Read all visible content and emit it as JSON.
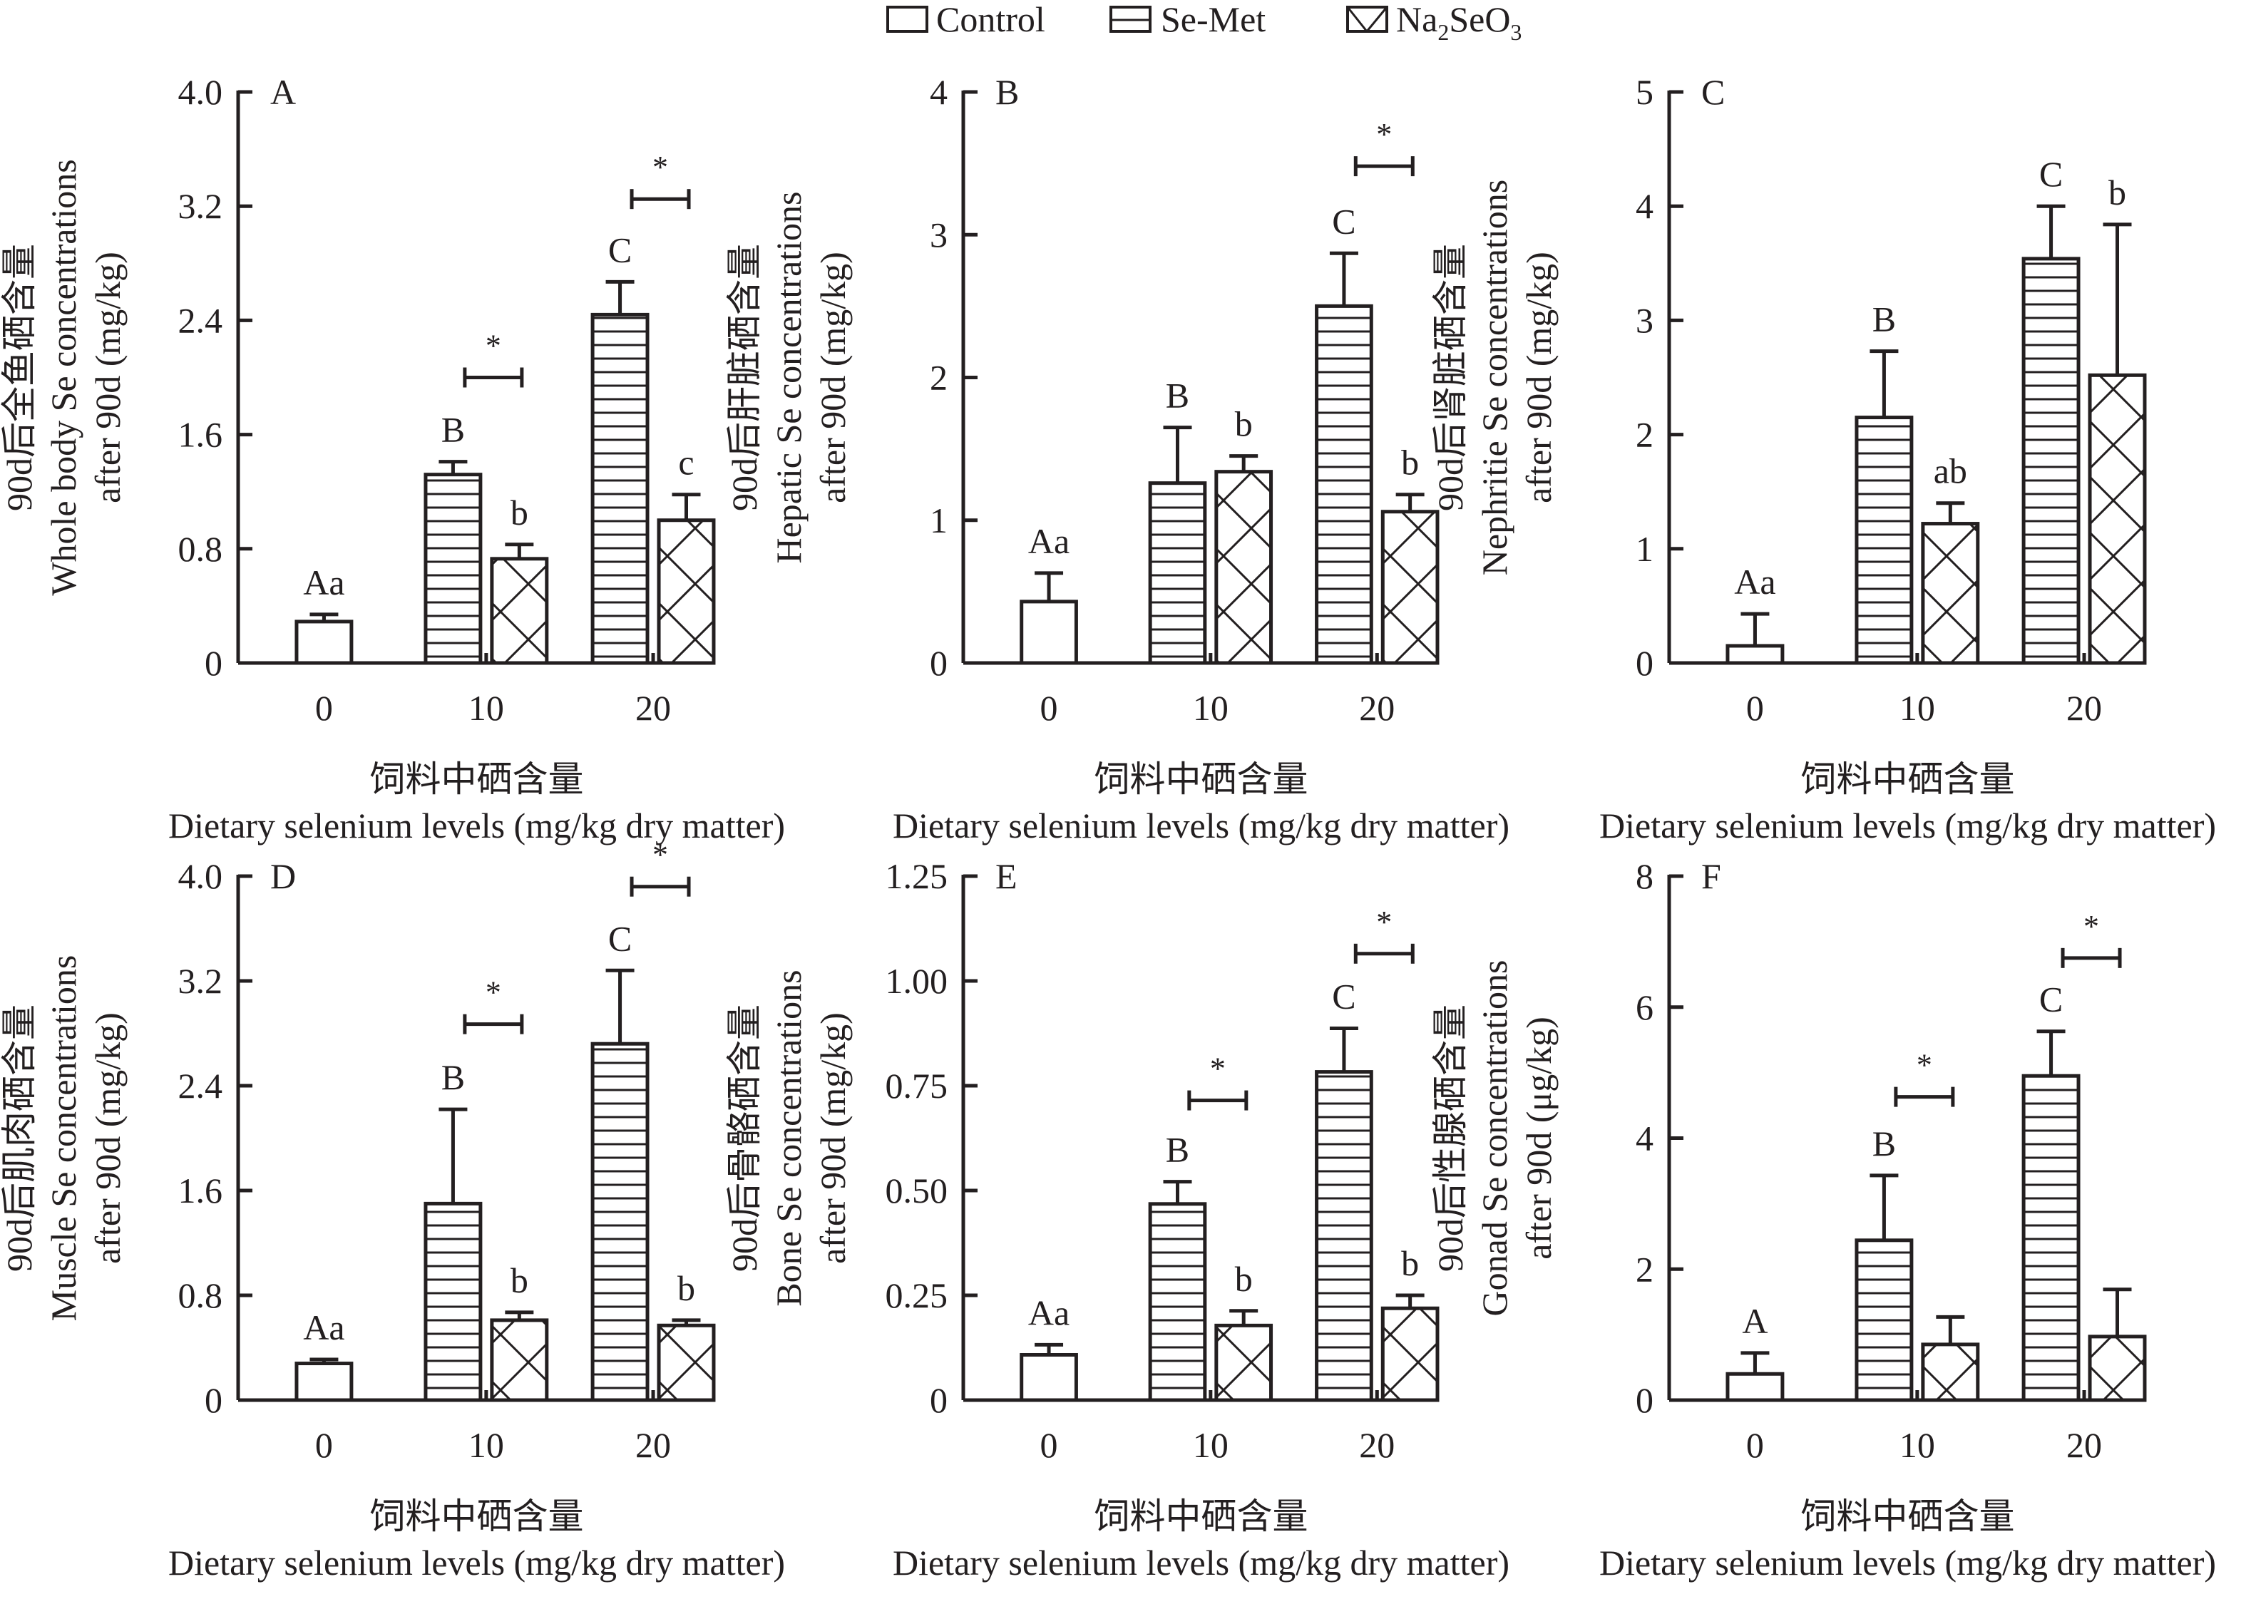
{
  "chart_data": {
    "type": "bar",
    "layout": "2x3 grid of grouped bar charts with error bars",
    "legend": {
      "placement": "top-center",
      "entries": [
        {
          "name": "Control",
          "pattern": "empty"
        },
        {
          "name": "Se-Met",
          "pattern": "horizontal-lines"
        },
        {
          "name": "Na2SeO3",
          "display": [
            "Na",
            "2",
            "SeO",
            "3"
          ],
          "pattern": "crosshatch"
        }
      ]
    },
    "xlabel_cn": "饲料中硒含量",
    "xlabel": "Dietary selenium levels (mg/kg dry matter)",
    "categories": [
      "0",
      "10",
      "20"
    ],
    "panels": [
      {
        "letter": "A",
        "ylabel_cn": "90d后全鱼硒含量",
        "ylabel_line1": "Whole body Se concentrations",
        "ylabel_line2": "after 90d (mg/kg)",
        "ylim": [
          0,
          4.0
        ],
        "yticks": [
          "0",
          "0.8",
          "1.6",
          "2.4",
          "3.2",
          "4.0"
        ],
        "series": [
          {
            "name": "Control",
            "values": [
              0.29,
              null,
              null
            ],
            "err_upper": [
              0.34,
              null,
              null
            ],
            "labels": [
              "Aa",
              "",
              ""
            ]
          },
          {
            "name": "Se-Met",
            "values": [
              null,
              1.32,
              2.44
            ],
            "err_upper": [
              null,
              1.41,
              2.67
            ],
            "labels": [
              "",
              "B",
              "C"
            ]
          },
          {
            "name": "Na2SeO3",
            "values": [
              null,
              0.73,
              1.0
            ],
            "err_upper": [
              null,
              0.83,
              1.18
            ],
            "labels": [
              "",
              "b",
              "c"
            ]
          }
        ],
        "significance": [
          {
            "category": "10",
            "y": 2.0,
            "mark": "*"
          },
          {
            "category": "20",
            "y": 3.25,
            "mark": "*"
          }
        ]
      },
      {
        "letter": "B",
        "ylabel_cn": "90d后肝脏硒含量",
        "ylabel_line1": "Hepatic Se concentrations",
        "ylabel_line2": "after 90d (mg/kg)",
        "ylim": [
          0,
          4
        ],
        "yticks": [
          "0",
          "1",
          "2",
          "3",
          "4"
        ],
        "series": [
          {
            "name": "Control",
            "values": [
              0.43,
              null,
              null
            ],
            "err_upper": [
              0.63,
              null,
              null
            ],
            "labels": [
              "Aa",
              "",
              ""
            ]
          },
          {
            "name": "Se-Met",
            "values": [
              null,
              1.26,
              2.5
            ],
            "err_upper": [
              null,
              1.65,
              2.87
            ],
            "labels": [
              "",
              "B",
              "C"
            ]
          },
          {
            "name": "Na2SeO3",
            "values": [
              null,
              1.34,
              1.06
            ],
            "err_upper": [
              null,
              1.45,
              1.18
            ],
            "labels": [
              "",
              "b",
              "b"
            ]
          }
        ],
        "significance": [
          {
            "category": "20",
            "y": 3.48,
            "mark": "*"
          }
        ]
      },
      {
        "letter": "C",
        "ylabel_cn": "90d后肾脏硒含量",
        "ylabel_line1": "Nephritie Se concentrations",
        "ylabel_line2": "after 90d (mg/kg)",
        "ylim": [
          0,
          5
        ],
        "yticks": [
          "0",
          "1",
          "2",
          "3",
          "4",
          "5"
        ],
        "series": [
          {
            "name": "Control",
            "values": [
              0.15,
              null,
              null
            ],
            "err_upper": [
              0.43,
              null,
              null
            ],
            "labels": [
              "Aa",
              "",
              ""
            ]
          },
          {
            "name": "Se-Met",
            "values": [
              null,
              2.15,
              3.54
            ],
            "err_upper": [
              null,
              2.73,
              4.0
            ],
            "labels": [
              "",
              "B",
              "C"
            ]
          },
          {
            "name": "Na2SeO3",
            "values": [
              null,
              1.22,
              2.52
            ],
            "err_upper": [
              null,
              1.4,
              3.84
            ],
            "labels": [
              "",
              "ab",
              "b"
            ]
          }
        ],
        "significance": []
      },
      {
        "letter": "D",
        "ylabel_cn": "90d后肌肉硒含量",
        "ylabel_line1": "Muscle Se concentrations",
        "ylabel_line2": "after 90d (mg/kg)",
        "ylim": [
          0,
          4.0
        ],
        "yticks": [
          "0",
          "0.8",
          "1.6",
          "2.4",
          "3.2",
          "4.0"
        ],
        "series": [
          {
            "name": "Control",
            "values": [
              0.28,
              null,
              null
            ],
            "err_upper": [
              0.31,
              null,
              null
            ],
            "labels": [
              "Aa",
              "",
              ""
            ]
          },
          {
            "name": "Se-Met",
            "values": [
              null,
              1.5,
              2.72
            ],
            "err_upper": [
              null,
              2.22,
              3.28
            ],
            "labels": [
              "",
              "B",
              "C"
            ]
          },
          {
            "name": "Na2SeO3",
            "values": [
              null,
              0.61,
              0.57
            ],
            "err_upper": [
              null,
              0.67,
              0.61
            ],
            "labels": [
              "",
              "b",
              "b"
            ]
          }
        ],
        "significance": [
          {
            "category": "10",
            "y": 2.87,
            "mark": "*"
          },
          {
            "category": "20",
            "y": 3.92,
            "mark": "*"
          }
        ]
      },
      {
        "letter": "E",
        "ylabel_cn": "90d后骨骼硒含量",
        "ylabel_line1": "Bone Se concentrations",
        "ylabel_line2": "after 90d (mg/kg)",
        "ylim": [
          0,
          1.25
        ],
        "yticks": [
          "0",
          "0.25",
          "0.50",
          "0.75",
          "1.00",
          "1.25"
        ],
        "series": [
          {
            "name": "Control",
            "values": [
              0.108,
              null,
              null
            ],
            "err_upper": [
              0.132,
              null,
              null
            ],
            "labels": [
              "Aa",
              "",
              ""
            ]
          },
          {
            "name": "Se-Met",
            "values": [
              null,
              0.468,
              0.783
            ],
            "err_upper": [
              null,
              0.521,
              0.887
            ],
            "labels": [
              "",
              "B",
              "C"
            ]
          },
          {
            "name": "Na2SeO3",
            "values": [
              null,
              0.178,
              0.219
            ],
            "err_upper": [
              null,
              0.213,
              0.25
            ],
            "labels": [
              "",
              "b",
              "b"
            ]
          }
        ],
        "significance": [
          {
            "category": "10",
            "y": 0.715,
            "mark": "*"
          },
          {
            "category": "20",
            "y": 1.065,
            "mark": "*"
          }
        ]
      },
      {
        "letter": "F",
        "ylabel_cn": "90d后性腺硒含量",
        "ylabel_line1": "Gonad Se concentrations",
        "ylabel_line2": "after 90d (μg/kg)",
        "ylim": [
          0,
          8
        ],
        "yticks": [
          "0",
          "2",
          "4",
          "6",
          "8"
        ],
        "series": [
          {
            "name": "Control",
            "values": [
              0.4,
              null,
              null
            ],
            "err_upper": [
              0.72,
              null,
              null
            ],
            "labels": [
              "A",
              "",
              ""
            ]
          },
          {
            "name": "Se-Met",
            "values": [
              null,
              2.44,
              4.95
            ],
            "err_upper": [
              null,
              3.43,
              5.63
            ],
            "labels": [
              "",
              "B",
              "C"
            ]
          },
          {
            "name": "Na2SeO3",
            "values": [
              null,
              0.85,
              0.97
            ],
            "err_upper": [
              null,
              1.27,
              1.69
            ],
            "labels": [
              "",
              "",
              ""
            ]
          }
        ],
        "significance": [
          {
            "category": "10",
            "y": 4.63,
            "mark": "*"
          },
          {
            "category": "20",
            "y": 6.75,
            "mark": "*"
          }
        ]
      }
    ]
  }
}
